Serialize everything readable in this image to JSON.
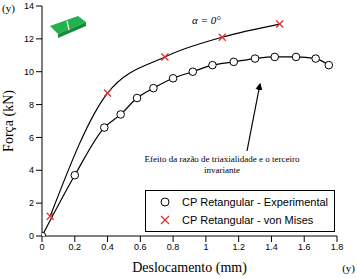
{
  "chart_data": {
    "type": "line",
    "xlabel": "Deslocamento (mm)",
    "ylabel": "Força (kN)",
    "xlim": [
      0,
      1.8
    ],
    "xticks": [
      0,
      0.2,
      0.4,
      0.6,
      0.8,
      1,
      1.2,
      1.4,
      1.6,
      1.8
    ],
    "ylim": [
      0,
      14
    ],
    "yticks": [
      0,
      2,
      4,
      6,
      8,
      10,
      12,
      14
    ],
    "grid": false,
    "legend": "lower right",
    "annotations": [
      {
        "text": "α = 0°"
      },
      {
        "text": "Efeito da razão de triaxialidade e o terceiro invariante"
      },
      {
        "text": "(y)"
      },
      {
        "text": "(y)"
      }
    ],
    "series": [
      {
        "name": "CP Retangular - Experimental",
        "color": "#000000",
        "marker": "circle",
        "x": [
          0,
          0.2,
          0.38,
          0.48,
          0.58,
          0.68,
          0.8,
          0.92,
          1.04,
          1.17,
          1.3,
          1.42,
          1.55,
          1.67,
          1.75
        ],
        "values": [
          0,
          3.7,
          6.6,
          7.4,
          8.4,
          9.0,
          9.6,
          10.0,
          10.4,
          10.6,
          10.8,
          10.9,
          10.9,
          10.8,
          10.4
        ]
      },
      {
        "name": "CP Retangular - von Mises",
        "color": "#e03030",
        "marker": "x",
        "x": [
          0.05,
          0.4,
          0.75,
          1.1,
          1.45
        ],
        "values": [
          1.2,
          8.7,
          10.9,
          12.1,
          12.9
        ]
      }
    ]
  }
}
